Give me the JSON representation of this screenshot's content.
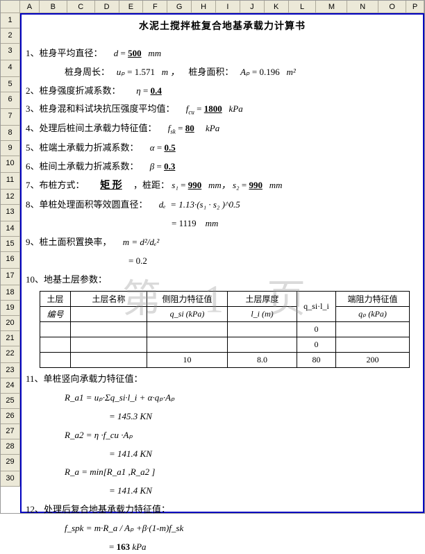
{
  "watermark": "第 1 页",
  "columns": {
    "letters": [
      "A",
      "B",
      "C",
      "D",
      "E",
      "F",
      "G",
      "H",
      "I",
      "J",
      "K",
      "L",
      "M",
      "N",
      "O",
      "P"
    ],
    "widths": [
      28,
      40,
      40,
      35,
      35,
      35,
      35,
      35,
      35,
      35,
      35,
      40,
      45,
      45,
      40,
      26
    ]
  },
  "rows": {
    "count": 30,
    "heights": [
      22,
      22,
      24,
      24,
      22,
      24,
      24,
      22,
      22,
      24,
      24,
      22,
      24,
      22,
      22,
      24,
      24,
      22,
      22,
      22,
      22,
      24,
      22,
      22,
      22,
      22,
      22,
      22,
      24,
      22
    ]
  },
  "title": "水泥土搅拌桩复合地基承载力计算书",
  "items": {
    "i1": {
      "label": "1、桩身平均直径：",
      "sym": "d",
      "val": "500",
      "unit": "mm"
    },
    "i1b": {
      "label": "桩身周长：",
      "sym": "uₚ",
      "val": "1.571",
      "unit": "m ，",
      "label2": "桩身面积：",
      "sym2": "Aₚ",
      "val2": "0.196",
      "unit2": "m²"
    },
    "i2": {
      "label": "2、桩身强度折减系数：",
      "sym": "η",
      "val": "0.4"
    },
    "i3": {
      "label": "3、桩身混和料试块抗压强度平均值：",
      "sym": "f_cu",
      "val": "1800",
      "unit": "kPa"
    },
    "i4": {
      "label": "4、处理后桩间土承载力特征值：",
      "sym": "f_sk",
      "val": "80",
      "unit": "kPa"
    },
    "i5": {
      "label": "5、桩端土承载力折减系数：",
      "sym": "α",
      "val": "0.5"
    },
    "i6": {
      "label": "6、桩间土承载力折减系数：",
      "sym": "β",
      "val": "0.3"
    },
    "i7": {
      "label": "7、布桩方式：",
      "val": "矩 形",
      "mid": "，桩距：",
      "s1sym": "s₁",
      "s1": "990",
      "u1": "mm，",
      "s2sym": "s₂",
      "s2": "990",
      "u2": "mm"
    },
    "i8": {
      "label": "8、单桩处理面积等效圆直径：",
      "sym": "dₑ",
      "eq": "= 1.13·(s₁ · s₂ )^0.5",
      "res": "= 1119",
      "unit": "mm"
    },
    "i9": {
      "label": "9、桩土面积置换率，",
      "sym": "m",
      "eq": "= d²/dₑ²",
      "res": "= 0.2"
    },
    "i10": {
      "label": "10、地基土层参数："
    },
    "i11": {
      "label": "11、单桩竖向承载力特征值："
    },
    "f11a": "R_a1 =  uₚ·Σq_si·l_i + α·qₚ·Aₚ",
    "f11a2": "=  145.3   KN",
    "f11b": "R_a2 =   η ·f_cu ·Aₚ",
    "f11b2": "=  141.4   KN",
    "f11c": "R_a  =  min[R_a1 ,R_a2 ]",
    "f11c2": "=  141.4   KN",
    "i12": {
      "label": "12、处理后复合地基承载力特征值："
    },
    "f12": "f_spk =  m·R_a / Aₚ +β·(1-m)f_sk",
    "f12b_pre": "= ",
    "f12b_val": "163",
    "f12b_unit": "   kPa"
  },
  "table": {
    "headers": {
      "c1a": "土层",
      "c1b": "编号",
      "c2": "土层名称",
      "c3a": "侧阻力特征值",
      "c3b": "q_si    (kPa)",
      "c4a": "土层厚度",
      "c4b": "l_i    (m)",
      "c5": "q_si·l_i",
      "c6a": "端阻力特征值",
      "c6b": "qₚ    (kPa)"
    },
    "widths": [
      44,
      110,
      116,
      100,
      56,
      106
    ],
    "rows": [
      [
        "",
        "",
        "",
        "",
        "0",
        ""
      ],
      [
        "",
        "",
        "",
        "",
        "0",
        ""
      ],
      [
        "",
        "",
        "10",
        "8.0",
        "80",
        "200"
      ]
    ]
  }
}
